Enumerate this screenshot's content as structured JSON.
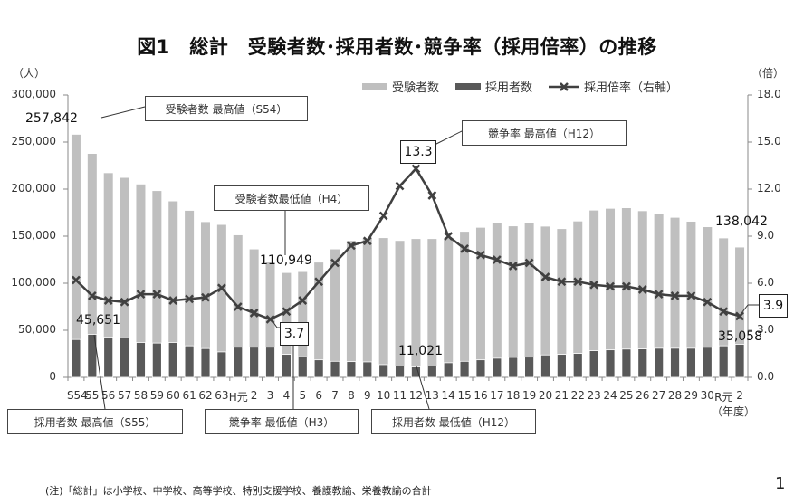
{
  "title": "図1　総計　受験者数･採用者数･競争率（採用倍率）の推移",
  "left_unit": "（人）",
  "right_unit": "（倍）",
  "x_unit": "（年度）",
  "legend": {
    "applicants": "受験者数",
    "hires": "採用者数",
    "ratio": "採用倍率（右軸）"
  },
  "colors": {
    "applicants": "#bfbfbf",
    "hires": "#595959",
    "ratio": "#404040"
  },
  "left_ticks": [
    "300,000",
    "250,000",
    "200,000",
    "150,000",
    "100,000",
    "50,000",
    "0"
  ],
  "right_ticks": [
    "18.0",
    "15.0",
    "12.0",
    "9.0",
    "6.0",
    "3.0",
    "0.0"
  ],
  "callouts": {
    "applicants_max": "受験者数 最高値（S54）",
    "ratio_max": "競争率 最高値（H12）",
    "applicants_min": "受験者数最低値（H4）",
    "hires_max": "採用者数 最高値（S55）",
    "ratio_min": "競争率 最低値（H3）",
    "hires_min": "採用者数 最低値（H12）"
  },
  "value_labels": {
    "applicants_max": "257,842",
    "applicants_min": "110,949",
    "applicants_last": "138,042",
    "hires_max": "45,651",
    "hires_min": "11,021",
    "hires_last": "35,058",
    "ratio_max": "13.3",
    "ratio_min": "3.7",
    "ratio_last": "3.9"
  },
  "note": "(注)「総計」は小学校、中学校、高等学校、特別支援学校、養護教諭、栄養教諭の合計",
  "page_number": "1",
  "chart_data": {
    "type": "bar",
    "title": "図1　総計　受験者数･採用者数･競争率（採用倍率）の推移",
    "xlabel": "（年度）",
    "ylabel": "（人）",
    "y2label": "（倍）",
    "ylim": [
      0,
      300000
    ],
    "y2lim": [
      0,
      18
    ],
    "grid": false,
    "legend_position": "top-right",
    "categories": [
      "S54",
      "55",
      "56",
      "57",
      "58",
      "59",
      "60",
      "61",
      "62",
      "63",
      "H元",
      "2",
      "3",
      "4",
      "5",
      "6",
      "7",
      "8",
      "9",
      "10",
      "11",
      "12",
      "13",
      "14",
      "15",
      "16",
      "17",
      "18",
      "19",
      "20",
      "21",
      "22",
      "23",
      "24",
      "25",
      "26",
      "27",
      "28",
      "29",
      "30",
      "R元",
      "2"
    ],
    "series": [
      {
        "name": "受験者数",
        "type": "bar",
        "axis": "left",
        "values": [
          257842,
          237500,
          217000,
          212000,
          205000,
          198000,
          187000,
          177000,
          165000,
          162000,
          151000,
          136000,
          123000,
          110949,
          112000,
          122000,
          136000,
          145000,
          148000,
          148000,
          145000,
          147000,
          147000,
          148000,
          154700,
          159000,
          163500,
          160500,
          164400,
          160200,
          157600,
          165700,
          177300,
          179200,
          179800,
          176600,
          174000,
          169600,
          165400,
          159600,
          147700,
          138042
        ]
      },
      {
        "name": "採用者数",
        "type": "bar",
        "axis": "left",
        "values": [
          40200,
          45651,
          42800,
          42000,
          37000,
          36400,
          37000,
          33500,
          30600,
          27000,
          32000,
          32000,
          32000,
          24400,
          21900,
          18600,
          17000,
          16700,
          16400,
          13500,
          12000,
          11021,
          12000,
          15500,
          17000,
          18600,
          20300,
          21200,
          21500,
          23800,
          24400,
          25400,
          28300,
          29200,
          30000,
          30200,
          30900,
          30900,
          30900,
          31900,
          33500,
          35058
        ]
      },
      {
        "name": "採用倍率（右軸）",
        "type": "line",
        "axis": "right",
        "values": [
          6.2,
          5.2,
          4.9,
          4.8,
          5.3,
          5.3,
          4.9,
          5.0,
          5.1,
          5.7,
          4.5,
          4.1,
          3.7,
          4.2,
          4.9,
          6.1,
          7.3,
          8.4,
          8.7,
          10.3,
          12.2,
          13.3,
          11.6,
          9.0,
          8.2,
          7.8,
          7.5,
          7.1,
          7.3,
          6.4,
          6.1,
          6.1,
          5.9,
          5.8,
          5.8,
          5.6,
          5.3,
          5.2,
          5.2,
          4.8,
          4.2,
          3.9
        ]
      }
    ],
    "annotations": [
      {
        "text": "受験者数 最高値（S54）",
        "value": "257,842",
        "category": "S54"
      },
      {
        "text": "受験者数最低値（H4）",
        "value": "110,949",
        "category": "4"
      },
      {
        "text": "競争率 最高値（H12）",
        "value": "13.3",
        "category": "12"
      },
      {
        "text": "競争率 最低値（H3）",
        "value": "3.7",
        "category": "3"
      },
      {
        "text": "採用者数 最高値（S55）",
        "value": "45,651",
        "category": "55"
      },
      {
        "text": "採用者数 最低値（H12）",
        "value": "11,021",
        "category": "12"
      },
      {
        "text": "",
        "value": "138,042",
        "category": "2 (R2)"
      },
      {
        "text": "",
        "value": "35,058",
        "category": "2 (R2)"
      },
      {
        "text": "",
        "value": "3.9",
        "category": "2 (R2)"
      }
    ]
  }
}
